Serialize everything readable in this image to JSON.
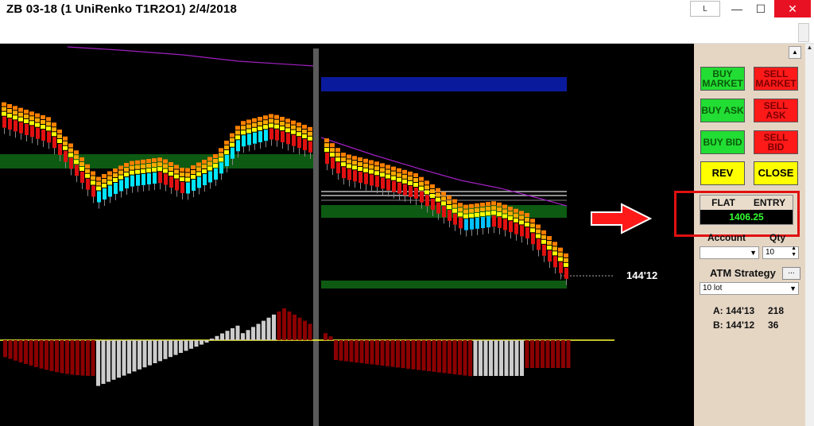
{
  "window": {
    "title": "ZB 03-18 (1 UniRenko T1R2O1)  2/4/2018",
    "buttons": {
      "help": "L",
      "minimize": "—",
      "maximize": "☐",
      "close": "✕"
    }
  },
  "chart": {
    "price_label": "144'12"
  },
  "order_panel": {
    "buy_market": "BUY MARKET",
    "sell_market": "SELL MARKET",
    "buy_ask": "BUY ASK",
    "sell_ask": "SELL ASK",
    "buy_bid": "BUY BID",
    "sell_bid": "SELL BID",
    "rev": "REV",
    "close": "CLOSE",
    "position": {
      "status": "FLAT",
      "entry_label": "ENTRY",
      "entry_price": "1406.25"
    },
    "account_label": "Account",
    "qty_label": "Qty",
    "qty_value": "10",
    "atm_label": "ATM Strategy",
    "atm_more": "...",
    "atm_value": "10 lot",
    "ask_line": "A: 144'13",
    "ask_size": "218",
    "bid_line": "B: 144'12",
    "bid_size": "36"
  },
  "colors": {
    "accent_red": "#e01010",
    "buy_green": "#22dd33",
    "sell_red": "#ff1a1a",
    "price_green": "#33ff33"
  }
}
